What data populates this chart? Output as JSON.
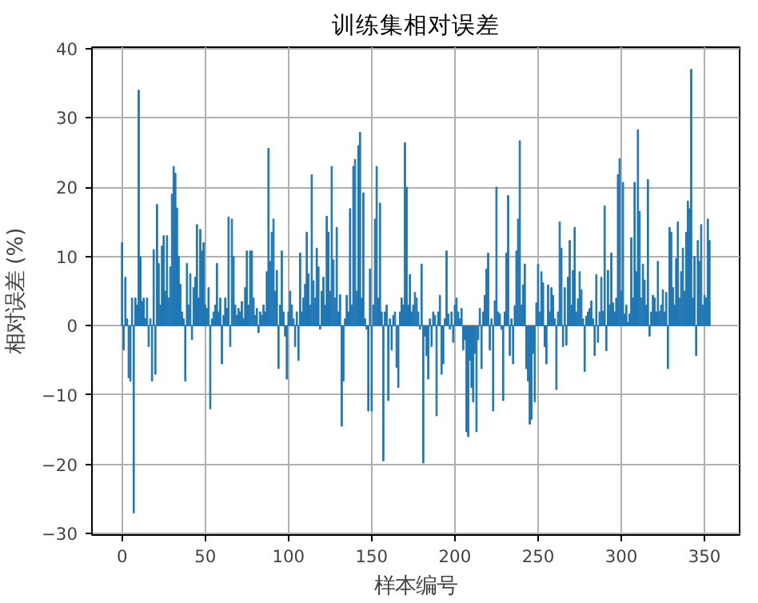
{
  "chart_data": {
    "type": "bar",
    "title": "训练集相对误差",
    "xlabel": "样本编号",
    "ylabel": "相对误差 (%)",
    "x": [
      0,
      1,
      2,
      3,
      4,
      5,
      6,
      7,
      8,
      9,
      10,
      11,
      12,
      13,
      14,
      15,
      16,
      17,
      18,
      19,
      20,
      21,
      22,
      23,
      24,
      25,
      26,
      27,
      28,
      29,
      30,
      31,
      32,
      33,
      34,
      35,
      36,
      37,
      38,
      39,
      40,
      41,
      42,
      43,
      44,
      45,
      46,
      47,
      48,
      49,
      50,
      51,
      52,
      53,
      54,
      55,
      56,
      57,
      58,
      59,
      60,
      61,
      62,
      63,
      64,
      65,
      66,
      67,
      68,
      69,
      70,
      71,
      72,
      73,
      74,
      75,
      76,
      77,
      78,
      79,
      80,
      81,
      82,
      83,
      84,
      85,
      86,
      87,
      88,
      89,
      90,
      91,
      92,
      93,
      94,
      95,
      96,
      97,
      98,
      99,
      100,
      101,
      102,
      103,
      104,
      105,
      106,
      107,
      108,
      109,
      110,
      111,
      112,
      113,
      114,
      115,
      116,
      117,
      118,
      119,
      120,
      121,
      122,
      123,
      124,
      125,
      126,
      127,
      128,
      129,
      130,
      131,
      132,
      133,
      134,
      135,
      136,
      137,
      138,
      139,
      140,
      141,
      142,
      143,
      144,
      145,
      146,
      147,
      148,
      149,
      150,
      151,
      152,
      153,
      154,
      155,
      156,
      157,
      158,
      159,
      160,
      161,
      162,
      163,
      164,
      165,
      166,
      167,
      168,
      169,
      170,
      171,
      172,
      173,
      174,
      175,
      176,
      177,
      178,
      179,
      180,
      181,
      182,
      183,
      184,
      185,
      186,
      187,
      188,
      189,
      190,
      191,
      192,
      193,
      194,
      195,
      196,
      197,
      198,
      199,
      200,
      201,
      202,
      203,
      204,
      205,
      206,
      207,
      208,
      209,
      210,
      211,
      212,
      213,
      214,
      215,
      216,
      217,
      218,
      219,
      220,
      221,
      222,
      223,
      224,
      225,
      226,
      227,
      228,
      229,
      230,
      231,
      232,
      233,
      234,
      235,
      236,
      237,
      238,
      239,
      240,
      241,
      242,
      243,
      244,
      245,
      246,
      247,
      248,
      249,
      250,
      251,
      252,
      253,
      254,
      255,
      256,
      257,
      258,
      259,
      260,
      261,
      262,
      263,
      264,
      265,
      266,
      267,
      268,
      269,
      270,
      271,
      272,
      273,
      274,
      275,
      276,
      277,
      278,
      279,
      280,
      281,
      282,
      283,
      284,
      285,
      286,
      287,
      288,
      289,
      290,
      291,
      292,
      293,
      294,
      295,
      296,
      297,
      298,
      299,
      300,
      301,
      302,
      303,
      304,
      305,
      306,
      307,
      308,
      309,
      310,
      311,
      312,
      313,
      314,
      315,
      316,
      317,
      318,
      319,
      320,
      321,
      322,
      323,
      324,
      325,
      326,
      327,
      328,
      329,
      330,
      331,
      332,
      333,
      334,
      335,
      336,
      337,
      338,
      339,
      340,
      341,
      342,
      343,
      344,
      345,
      346,
      347,
      348,
      349,
      350,
      351,
      352,
      353
    ],
    "values": [
      12,
      -3.5,
      7,
      1,
      -7.5,
      -8,
      4,
      -27,
      4,
      3,
      34,
      10,
      3.5,
      4,
      1,
      4,
      -3,
      1,
      -8,
      11,
      -7,
      17.5,
      9,
      3,
      11.5,
      13,
      5,
      13,
      4,
      8.5,
      19,
      23,
      22,
      17,
      10,
      6,
      2,
      1,
      -8,
      9,
      3,
      7.5,
      -2,
      5.5,
      7,
      14.6,
      4,
      13.9,
      10.8,
      12,
      3,
      2.5,
      5.5,
      -12,
      1,
      2,
      3,
      9,
      2,
      4,
      -5.5,
      1.5,
      4,
      2.5,
      15.7,
      -3,
      15.4,
      10,
      3,
      1.5,
      2.5,
      2,
      3.5,
      1,
      5.5,
      10.8,
      3,
      10.8,
      10.8,
      4,
      1.5,
      2.5,
      -1,
      2,
      1.5,
      3,
      2,
      7.8,
      25.6,
      9.3,
      13.5,
      15.4,
      5,
      8,
      -6.2,
      3,
      10.8,
      2,
      -1.5,
      -7.7,
      2,
      5,
      3,
      1,
      -3,
      2,
      -5,
      10.5,
      2,
      4,
      6,
      13.5,
      7.5,
      3,
      21.8,
      6.5,
      4,
      11.2,
      8.5,
      -0.5,
      5,
      7,
      3,
      15.8,
      13.5,
      5,
      23,
      9.5,
      4,
      14.2,
      2,
      4.5,
      -14.5,
      -8,
      1,
      4.4,
      2,
      16.9,
      3,
      23,
      24,
      5,
      26,
      27.9,
      4,
      19.2,
      1,
      -0.5,
      -12.3,
      8.2,
      -12.3,
      3,
      15.4,
      23,
      4,
      17.7,
      2,
      -19.5,
      2,
      3,
      -10.8,
      1,
      -3.5,
      1.5,
      2,
      -6,
      -8.9,
      2,
      4,
      3,
      26.4,
      20,
      3,
      7.4,
      2,
      3,
      4.8,
      4,
      2,
      -0.5,
      8.9,
      -19.8,
      -1.5,
      -4.3,
      -7.7,
      1,
      -3,
      2,
      1.5,
      -13,
      2,
      4.4,
      -7,
      -5.5,
      1,
      10.8,
      1.7,
      -0.5,
      2,
      -2.4,
      3,
      4,
      2,
      1,
      2.5,
      -3.5,
      -2,
      -15.3,
      -16,
      -5,
      -8.9,
      -11,
      -4,
      -15.3,
      -2,
      2.5,
      -6.2,
      2,
      4.4,
      8.2,
      10.5,
      -3.5,
      1,
      -12.3,
      3.6,
      20,
      2,
      1.7,
      -0.5,
      -10.8,
      2,
      10.5,
      18.8,
      -4.3,
      1,
      -5.5,
      2.9,
      10.8,
      15.4,
      26.7,
      3,
      5.9,
      8.9,
      -6.2,
      -8,
      -14.2,
      -13.5,
      -4,
      -11,
      3.3,
      8.9,
      2,
      7.8,
      6.2,
      -3,
      -5.5,
      5.9,
      2,
      5.5,
      4.4,
      1,
      -9.2,
      2,
      15,
      11.2,
      -3,
      5.5,
      -2.8,
      7,
      12.3,
      3,
      8,
      14.2,
      2,
      3.9,
      7.8,
      5.2,
      1,
      -6.6,
      1.4,
      2,
      2.5,
      3.6,
      1,
      -4.3,
      7.4,
      -2.4,
      2,
      7,
      2.1,
      17.3,
      -3.6,
      8,
      3,
      10.5,
      3.3,
      2,
      4,
      21.8,
      24.1,
      5,
      20.7,
      1.7,
      3,
      0.5,
      1.7,
      12.7,
      4,
      20.7,
      7.8,
      28.3,
      16.5,
      4,
      8.9,
      6.6,
      3,
      21.1,
      -1.5,
      2,
      4.4,
      4,
      2,
      9.3,
      2.1,
      3,
      5.2,
      2,
      4.8,
      -6.2,
      14.2,
      13.5,
      5.5,
      3,
      9.7,
      15,
      4,
      7.8,
      11.2,
      5,
      13.5,
      18,
      16.9,
      37,
      4,
      10,
      -4.3,
      12.3,
      9.3,
      14.6,
      3,
      4.4,
      4,
      15.4,
      12.3
    ],
    "color": "#1f77b4",
    "xlim": [
      -18.1,
      371.1
    ],
    "xticks": [
      0,
      50,
      100,
      150,
      200,
      250,
      300,
      350
    ],
    "ylim": [
      -30.2,
      40.2
    ],
    "yticks": [
      -30,
      -20,
      -10,
      0,
      10,
      20,
      30,
      40
    ],
    "grid": true
  }
}
